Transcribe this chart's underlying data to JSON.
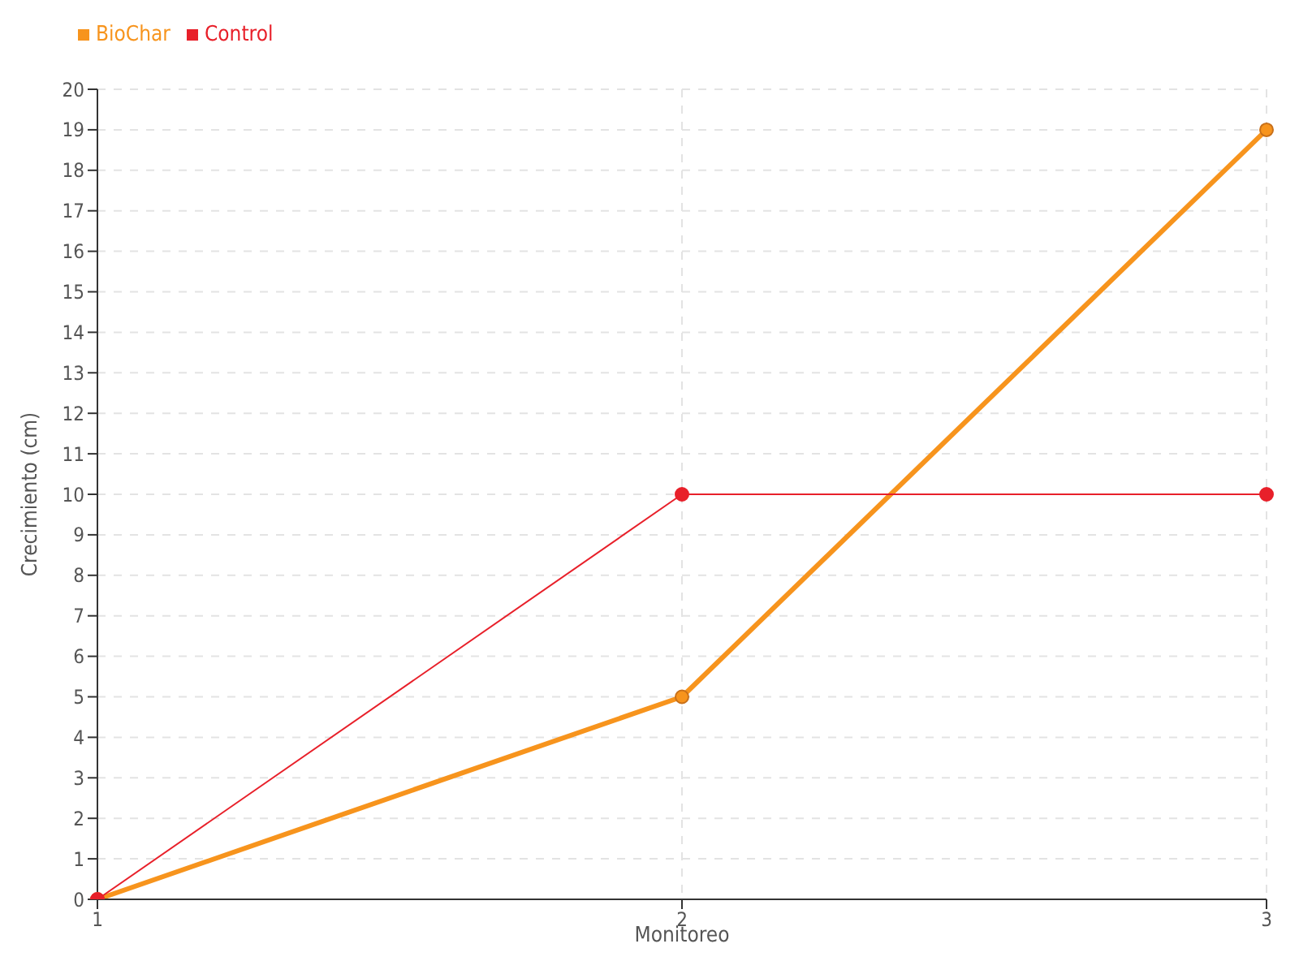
{
  "chart_data": {
    "type": "line",
    "xlabel": "Monitoreo",
    "ylabel": "Crecimiento (cm)",
    "categories": [
      "1",
      "2",
      "3"
    ],
    "series": [
      {
        "name": "BioChar",
        "color": "#f7941d",
        "values": [
          0,
          5,
          19
        ]
      },
      {
        "name": "Control",
        "color": "#e8202a",
        "values": [
          0,
          10,
          10
        ]
      }
    ],
    "ylim": [
      0,
      20
    ],
    "yticks": [
      0,
      1,
      2,
      3,
      4,
      5,
      6,
      7,
      8,
      9,
      10,
      11,
      12,
      13,
      14,
      15,
      16,
      17,
      18,
      19,
      20
    ],
    "grid": true,
    "legend": "top left",
    "marker": "circle",
    "line_style": "solid"
  }
}
